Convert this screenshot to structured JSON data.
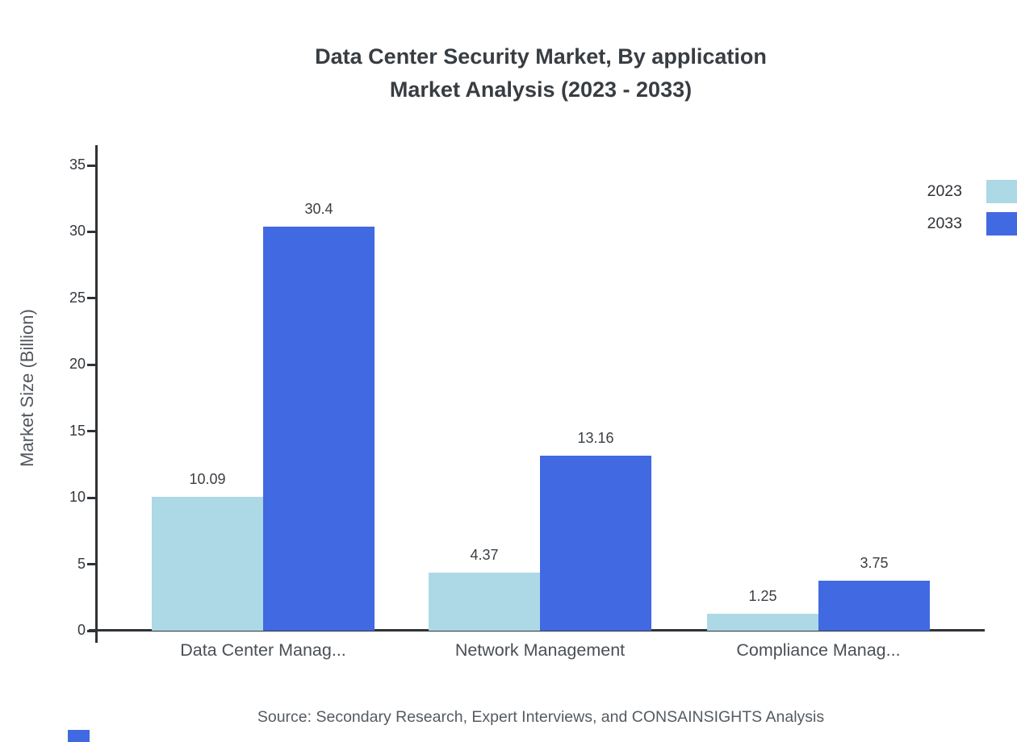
{
  "title": {
    "line1": "Data Center Security Market, By application",
    "line2": "Market Analysis (2023 - 2033)"
  },
  "source_note": "Source: Secondary Research, Expert Interviews, and CONSAINSIGHTS Analysis",
  "chart_data": {
    "type": "bar",
    "title": "Data Center Security Market, By application Market Analysis (2023 - 2033)",
    "categories": [
      "Data Center Manag...",
      "Network Management",
      "Compliance Manag..."
    ],
    "series": [
      {
        "name": "2023",
        "color": "#add8e6",
        "values": [
          10.09,
          4.37,
          1.25
        ]
      },
      {
        "name": "2033",
        "color": "#4169e1",
        "values": [
          30.4,
          13.16,
          3.75
        ]
      }
    ],
    "xlabel": "",
    "ylabel": "Market Size (Billion)",
    "ylim": [
      0,
      35
    ],
    "yticks": [
      0,
      5,
      10,
      15,
      20,
      25,
      30,
      35
    ],
    "grid": false,
    "legend_position": "top-right",
    "value_labels": true
  }
}
